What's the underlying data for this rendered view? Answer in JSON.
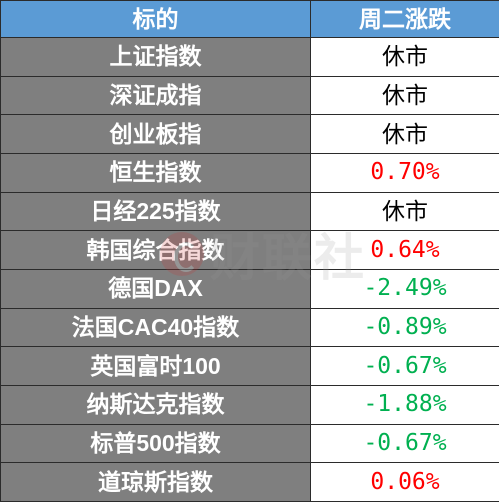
{
  "header": {
    "col1": "标的",
    "col2": "周二涨跌"
  },
  "colors": {
    "header_bg": "#5b9bd5",
    "name_bg": "#7f7f7f",
    "up": "#ff0000",
    "down": "#00b050",
    "closed": "#000000"
  },
  "rows": [
    {
      "name": "上证指数",
      "value": "休市",
      "status": "closed"
    },
    {
      "name": "深证成指",
      "value": "休市",
      "status": "closed"
    },
    {
      "name": "创业板指",
      "value": "休市",
      "status": "closed"
    },
    {
      "name": "恒生指数",
      "value": "0.70%",
      "status": "up"
    },
    {
      "name": "日经225指数",
      "value": "休市",
      "status": "closed"
    },
    {
      "name": "韩国综合指数",
      "value": "0.64%",
      "status": "up"
    },
    {
      "name": "德国DAX",
      "value": "-2.49%",
      "status": "down"
    },
    {
      "name": "法国CAC40指数",
      "value": "-0.89%",
      "status": "down"
    },
    {
      "name": "英国富时100",
      "value": "-0.67%",
      "status": "down"
    },
    {
      "name": "纳斯达克指数",
      "value": "-1.88%",
      "status": "down"
    },
    {
      "name": "标普500指数",
      "value": "-0.67%",
      "status": "down"
    },
    {
      "name": "道琼斯指数",
      "value": "0.06%",
      "status": "up"
    }
  ],
  "watermark": {
    "text": "财联社",
    "icon": "cls-logo-icon"
  }
}
